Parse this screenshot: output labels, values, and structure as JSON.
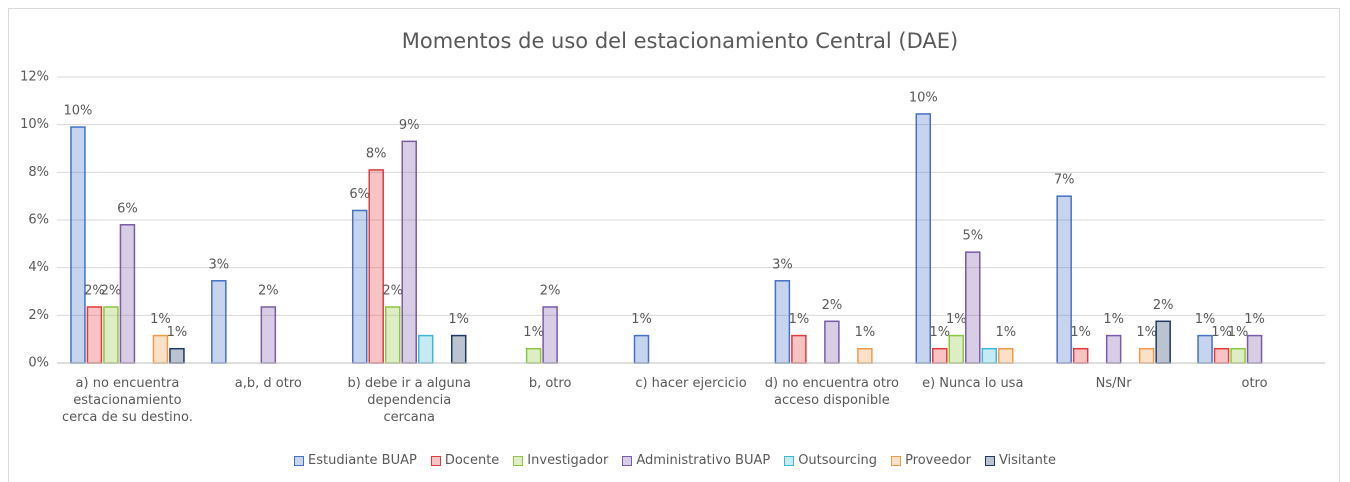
{
  "chart_data": {
    "type": "bar",
    "title": "Momentos de uso del estacionamiento Central (DAE)",
    "categories": [
      "a) no encuentra estacionamiento cerca de su destino.",
      "a,b, d otro",
      "b) debe ir a alguna dependencia cercana",
      "b, otro",
      "c) hacer ejercicio",
      "d) no encuentra otro acceso disponible",
      "e) Nunca lo usa",
      "Ns/Nr",
      "otro"
    ],
    "ylim": [
      0,
      12
    ],
    "yticks": [
      {
        "value": 0,
        "label": "0%"
      },
      {
        "value": 2,
        "label": "2%"
      },
      {
        "value": 4,
        "label": "4%"
      },
      {
        "value": 6,
        "label": "6%"
      },
      {
        "value": 8,
        "label": "8%"
      },
      {
        "value": 10,
        "label": "10%"
      },
      {
        "value": 12,
        "label": "12%"
      }
    ],
    "grid": true,
    "legend": "bottom",
    "series": [
      {
        "name": "Estudiante BUAP",
        "color": "#4472c4",
        "values": [
          9.9,
          3.45,
          6.4,
          null,
          1.15,
          3.45,
          10.45,
          7.0,
          1.15
        ],
        "value_labels": [
          "10%",
          "3%",
          "6%",
          null,
          "1%",
          "3%",
          "10%",
          "7%",
          "1%"
        ]
      },
      {
        "name": "Docente",
        "color": "#e03c3c",
        "values": [
          2.35,
          null,
          8.1,
          null,
          null,
          1.15,
          0.6,
          0.6,
          0.6
        ],
        "value_labels": [
          "2%",
          null,
          "8%",
          null,
          null,
          "1%",
          "1%",
          "1%",
          "1%"
        ]
      },
      {
        "name": "Investigador",
        "color": "#8dc63f",
        "values": [
          2.35,
          null,
          2.35,
          0.6,
          null,
          null,
          1.15,
          null,
          0.6
        ],
        "value_labels": [
          "2%",
          null,
          "2%",
          "1%",
          null,
          null,
          "1%",
          null,
          "1%"
        ]
      },
      {
        "name": "Administrativo BUAP",
        "color": "#7b5aa6",
        "values": [
          5.8,
          2.35,
          9.3,
          2.35,
          null,
          1.75,
          4.65,
          1.15,
          1.15
        ],
        "value_labels": [
          "6%",
          "2%",
          "9%",
          "2%",
          null,
          "2%",
          "5%",
          "1%",
          "1%"
        ]
      },
      {
        "name": "Outsourcing",
        "color": "#3fb8d8",
        "values": [
          null,
          null,
          1.15,
          null,
          null,
          null,
          0.6,
          null,
          null
        ],
        "value_labels": [
          null,
          null,
          null,
          null,
          null,
          null,
          null,
          null,
          null
        ]
      },
      {
        "name": "Proveedor",
        "color": "#f39a4a",
        "values": [
          1.15,
          null,
          null,
          null,
          null,
          0.6,
          0.6,
          0.6,
          null
        ],
        "value_labels": [
          "1%",
          null,
          null,
          null,
          null,
          "1%",
          "1%",
          "1%",
          null
        ]
      },
      {
        "name": "Visitante",
        "color": "#1f3864",
        "values": [
          0.6,
          null,
          1.15,
          null,
          null,
          null,
          null,
          1.75,
          null
        ],
        "value_labels": [
          "1%",
          null,
          "1%",
          null,
          null,
          null,
          null,
          "2%",
          null
        ]
      }
    ]
  }
}
